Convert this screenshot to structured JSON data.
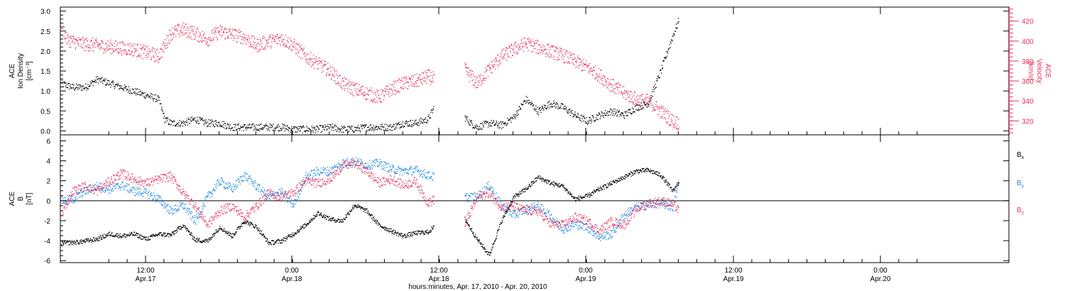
{
  "colors": {
    "black_series": "#000000",
    "velocity": "#e8305c",
    "by": "#1e88e5",
    "bz": "#e8305c",
    "axis": "#000000"
  },
  "chart_data": [
    {
      "type": "scatter",
      "title": "",
      "ylabel_lines": [
        "ACE",
        "Ion Density",
        "[cm⁻³]"
      ],
      "ylim": [
        -0.1,
        3.1
      ],
      "yticks": [
        "0.0",
        "0.5",
        "1.0",
        "1.5",
        "2.0",
        "2.5",
        "3.0"
      ],
      "y2label_lines": [
        "ACE",
        "Velocity",
        "[km/s]"
      ],
      "y2lim": [
        306,
        434
      ],
      "y2ticks": [
        "320",
        "340",
        "360",
        "380",
        "400",
        "420"
      ],
      "series": [
        {
          "name": "Ion Density",
          "axis": "left",
          "points": [
            [
              0,
              1.2
            ],
            [
              2,
              1.1
            ],
            [
              4,
              1.1
            ],
            [
              6,
              1.3
            ],
            [
              8,
              1.2
            ],
            [
              10,
              1.1
            ],
            [
              12,
              1.0
            ],
            [
              14,
              0.9
            ],
            [
              16,
              0.8
            ],
            [
              17,
              0.3
            ],
            [
              18,
              0.2
            ],
            [
              20,
              0.2
            ],
            [
              22,
              0.3
            ],
            [
              24,
              0.2
            ],
            [
              26,
              0.2
            ],
            [
              28,
              0.1
            ],
            [
              30,
              0.1
            ],
            [
              32,
              0.1
            ],
            [
              34,
              0.1
            ],
            [
              36,
              0.1
            ],
            [
              38,
              0.05
            ],
            [
              40,
              0.05
            ],
            [
              42,
              0.05
            ],
            [
              44,
              0.1
            ],
            [
              46,
              0.05
            ],
            [
              48,
              0.05
            ],
            [
              50,
              0.1
            ],
            [
              52,
              0.1
            ],
            [
              54,
              0.1
            ],
            [
              56,
              0.2
            ],
            [
              58,
              0.2
            ],
            [
              60,
              0.3
            ],
            [
              61,
              0.6
            ],
            [
              66,
              0.35
            ],
            [
              67,
              0.2
            ],
            [
              68,
              0.1
            ],
            [
              70,
              0.2
            ],
            [
              72,
              0.15
            ],
            [
              74,
              0.35
            ],
            [
              76,
              0.8
            ],
            [
              78,
              0.5
            ],
            [
              80,
              0.7
            ],
            [
              82,
              0.6
            ],
            [
              84,
              0.4
            ],
            [
              86,
              0.25
            ],
            [
              88,
              0.4
            ],
            [
              90,
              0.5
            ],
            [
              92,
              0.4
            ],
            [
              94,
              0.6
            ],
            [
              96,
              0.7
            ],
            [
              98,
              1.5
            ],
            [
              100,
              2.4
            ],
            [
              101,
              2.8
            ]
          ]
        },
        {
          "name": "Velocity",
          "axis": "right",
          "points": [
            [
              0,
              420
            ],
            [
              1,
              402
            ],
            [
              3,
              398
            ],
            [
              6,
              396
            ],
            [
              9,
              394
            ],
            [
              12,
              392
            ],
            [
              15,
              387
            ],
            [
              16,
              385
            ],
            [
              18,
              408
            ],
            [
              20,
              412
            ],
            [
              22,
              408
            ],
            [
              24,
              402
            ],
            [
              26,
              410
            ],
            [
              28,
              407
            ],
            [
              30,
              404
            ],
            [
              32,
              396
            ],
            [
              34,
              400
            ],
            [
              36,
              403
            ],
            [
              38,
              396
            ],
            [
              40,
              385
            ],
            [
              42,
              378
            ],
            [
              44,
              370
            ],
            [
              46,
              358
            ],
            [
              48,
              352
            ],
            [
              50,
              348
            ],
            [
              52,
              344
            ],
            [
              54,
              352
            ],
            [
              56,
              358
            ],
            [
              58,
              360
            ],
            [
              60,
              365
            ],
            [
              61,
              362
            ],
            [
              66,
              372
            ],
            [
              68,
              358
            ],
            [
              70,
              372
            ],
            [
              72,
              385
            ],
            [
              74,
              392
            ],
            [
              76,
              398
            ],
            [
              78,
              394
            ],
            [
              80,
              390
            ],
            [
              82,
              386
            ],
            [
              84,
              380
            ],
            [
              86,
              374
            ],
            [
              88,
              366
            ],
            [
              90,
              356
            ],
            [
              92,
              348
            ],
            [
              94,
              342
            ],
            [
              96,
              340
            ],
            [
              98,
              330
            ],
            [
              100,
              320
            ],
            [
              101,
              318
            ]
          ]
        }
      ]
    },
    {
      "type": "scatter",
      "title": "",
      "ylabel_lines": [
        "ACE",
        "B",
        "[nT]"
      ],
      "ylim": [
        -6.2,
        6.6
      ],
      "yticks": [
        "-6",
        "-4",
        "-2",
        "0",
        "2",
        "4",
        "6"
      ],
      "xlabel": "hours:minutes, Apr. 17, 2010 - Apr. 20, 2010",
      "xticks": [
        {
          "time": "12:00",
          "date": "Apr.17"
        },
        {
          "time": "0:00",
          "date": "Apr.18"
        },
        {
          "time": "12:00",
          "date": "Apr.18"
        },
        {
          "time": "0:00",
          "date": "Apr.19"
        },
        {
          "time": "12:00",
          "date": "Apr.19"
        },
        {
          "time": "0:00",
          "date": "Apr.20"
        }
      ],
      "series": [
        {
          "name": "Bx",
          "label_main": "B",
          "label_sub": "x",
          "points": [
            [
              0,
              -4.2
            ],
            [
              3,
              -4.1
            ],
            [
              6,
              -3.8
            ],
            [
              8,
              -3.3
            ],
            [
              10,
              -3.5
            ],
            [
              12,
              -3.3
            ],
            [
              14,
              -3.8
            ],
            [
              16,
              -3.3
            ],
            [
              18,
              -3.4
            ],
            [
              20,
              -2.4
            ],
            [
              22,
              -3.9
            ],
            [
              24,
              -4.0
            ],
            [
              26,
              -2.6
            ],
            [
              28,
              -3.5
            ],
            [
              30,
              -2.0
            ],
            [
              32,
              -2.6
            ],
            [
              34,
              -4.2
            ],
            [
              36,
              -4.0
            ],
            [
              38,
              -3.3
            ],
            [
              40,
              -2.4
            ],
            [
              42,
              -1.2
            ],
            [
              44,
              -1.8
            ],
            [
              46,
              -2.0
            ],
            [
              48,
              -0.4
            ],
            [
              50,
              -1.0
            ],
            [
              52,
              -2.4
            ],
            [
              54,
              -3.0
            ],
            [
              56,
              -3.5
            ],
            [
              58,
              -3.2
            ],
            [
              60,
              -3.1
            ],
            [
              61,
              -2.6
            ],
            [
              66,
              -1.8
            ],
            [
              68,
              -3.8
            ],
            [
              70,
              -5.4
            ],
            [
              72,
              -2.0
            ],
            [
              74,
              0.4
            ],
            [
              76,
              1.2
            ],
            [
              78,
              2.4
            ],
            [
              80,
              1.8
            ],
            [
              82,
              1.5
            ],
            [
              84,
              0.2
            ],
            [
              86,
              0.5
            ],
            [
              88,
              1.2
            ],
            [
              90,
              1.8
            ],
            [
              92,
              2.4
            ],
            [
              94,
              3.0
            ],
            [
              96,
              3.1
            ],
            [
              98,
              2.6
            ],
            [
              100,
              1.0
            ],
            [
              101,
              2.0
            ]
          ]
        },
        {
          "name": "By",
          "label_main": "B",
          "label_sub": "y",
          "points": [
            [
              0,
              0.0
            ],
            [
              2,
              0.2
            ],
            [
              4,
              1.0
            ],
            [
              6,
              1.5
            ],
            [
              8,
              1.2
            ],
            [
              10,
              1.6
            ],
            [
              12,
              1.0
            ],
            [
              14,
              0.8
            ],
            [
              16,
              0.2
            ],
            [
              18,
              -1.0
            ],
            [
              20,
              -0.4
            ],
            [
              22,
              -2.0
            ],
            [
              24,
              0.4
            ],
            [
              26,
              2.0
            ],
            [
              28,
              1.2
            ],
            [
              30,
              2.6
            ],
            [
              32,
              1.5
            ],
            [
              34,
              0.4
            ],
            [
              36,
              0.9
            ],
            [
              38,
              -0.4
            ],
            [
              40,
              2.4
            ],
            [
              42,
              3.0
            ],
            [
              44,
              3.0
            ],
            [
              46,
              3.8
            ],
            [
              48,
              4.0
            ],
            [
              50,
              3.6
            ],
            [
              52,
              3.8
            ],
            [
              54,
              3.2
            ],
            [
              56,
              3.0
            ],
            [
              58,
              3.1
            ],
            [
              60,
              2.6
            ],
            [
              61,
              2.4
            ],
            [
              66,
              0.4
            ],
            [
              68,
              0.4
            ],
            [
              70,
              1.6
            ],
            [
              72,
              -0.5
            ],
            [
              74,
              -1.4
            ],
            [
              76,
              -0.8
            ],
            [
              78,
              -0.5
            ],
            [
              80,
              -1.5
            ],
            [
              82,
              -2.8
            ],
            [
              84,
              -2.3
            ],
            [
              86,
              -2.6
            ],
            [
              88,
              -3.6
            ],
            [
              90,
              -3.3
            ],
            [
              92,
              -1.4
            ],
            [
              94,
              -0.6
            ],
            [
              96,
              -0.4
            ],
            [
              98,
              -0.2
            ],
            [
              100,
              -0.6
            ],
            [
              101,
              2.0
            ]
          ]
        },
        {
          "name": "Bz",
          "label_main": "B",
          "label_sub": "z",
          "points": [
            [
              0,
              -1.5
            ],
            [
              2,
              1.0
            ],
            [
              4,
              1.5
            ],
            [
              6,
              1.0
            ],
            [
              8,
              2.0
            ],
            [
              10,
              2.8
            ],
            [
              12,
              2.2
            ],
            [
              14,
              1.8
            ],
            [
              16,
              2.2
            ],
            [
              18,
              2.5
            ],
            [
              20,
              0.8
            ],
            [
              22,
              -0.5
            ],
            [
              24,
              -2.4
            ],
            [
              26,
              -1.0
            ],
            [
              28,
              -0.5
            ],
            [
              30,
              -1.6
            ],
            [
              32,
              -0.5
            ],
            [
              34,
              0.8
            ],
            [
              36,
              0.4
            ],
            [
              38,
              0.9
            ],
            [
              40,
              2.0
            ],
            [
              42,
              1.8
            ],
            [
              44,
              2.2
            ],
            [
              46,
              3.5
            ],
            [
              48,
              3.8
            ],
            [
              50,
              3.0
            ],
            [
              52,
              1.8
            ],
            [
              54,
              2.2
            ],
            [
              56,
              1.6
            ],
            [
              58,
              2.0
            ],
            [
              60,
              -0.2
            ],
            [
              61,
              0.2
            ],
            [
              66,
              -2.4
            ],
            [
              68,
              0.4
            ],
            [
              70,
              0.8
            ],
            [
              72,
              -0.6
            ],
            [
              74,
              -0.5
            ],
            [
              76,
              -1.0
            ],
            [
              78,
              -1.0
            ],
            [
              80,
              -2.3
            ],
            [
              82,
              -2.4
            ],
            [
              84,
              -1.6
            ],
            [
              86,
              -2.0
            ],
            [
              88,
              -3.0
            ],
            [
              90,
              -2.0
            ],
            [
              92,
              -2.4
            ],
            [
              94,
              -0.8
            ],
            [
              96,
              -0.2
            ],
            [
              98,
              0.0
            ],
            [
              100,
              -0.3
            ],
            [
              101,
              -1.0
            ]
          ]
        }
      ]
    }
  ]
}
